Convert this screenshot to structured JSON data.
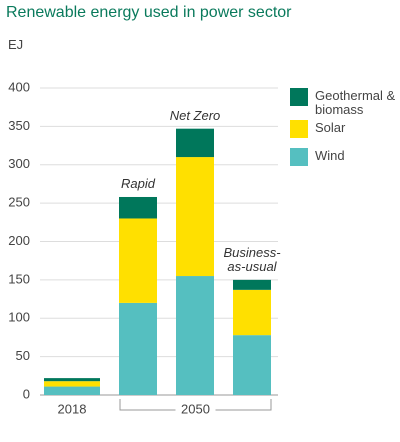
{
  "chart_data": {
    "type": "stacked_bar",
    "title": "Renewable energy used in power sector",
    "y_label": "EJ",
    "categories": [
      "2018",
      null,
      null,
      null
    ],
    "group_label": "2050",
    "bar_labels": [
      null,
      "Rapid",
      "Net Zero",
      "Business-as-usual"
    ],
    "series": [
      {
        "name": "Wind",
        "color": "#55bfc0",
        "values": [
          11,
          120,
          155,
          78
        ]
      },
      {
        "name": "Solar",
        "color": "#ffe000",
        "values": [
          7,
          110,
          155,
          59
        ]
      },
      {
        "name": "Geothermal & biomass",
        "color": "#00775b",
        "values": [
          4,
          28,
          37,
          13
        ]
      }
    ],
    "ylim": [
      0,
      400
    ],
    "yticks": [
      0,
      50,
      100,
      150,
      200,
      250,
      300,
      350,
      400
    ],
    "grid": true,
    "legend": "right"
  }
}
